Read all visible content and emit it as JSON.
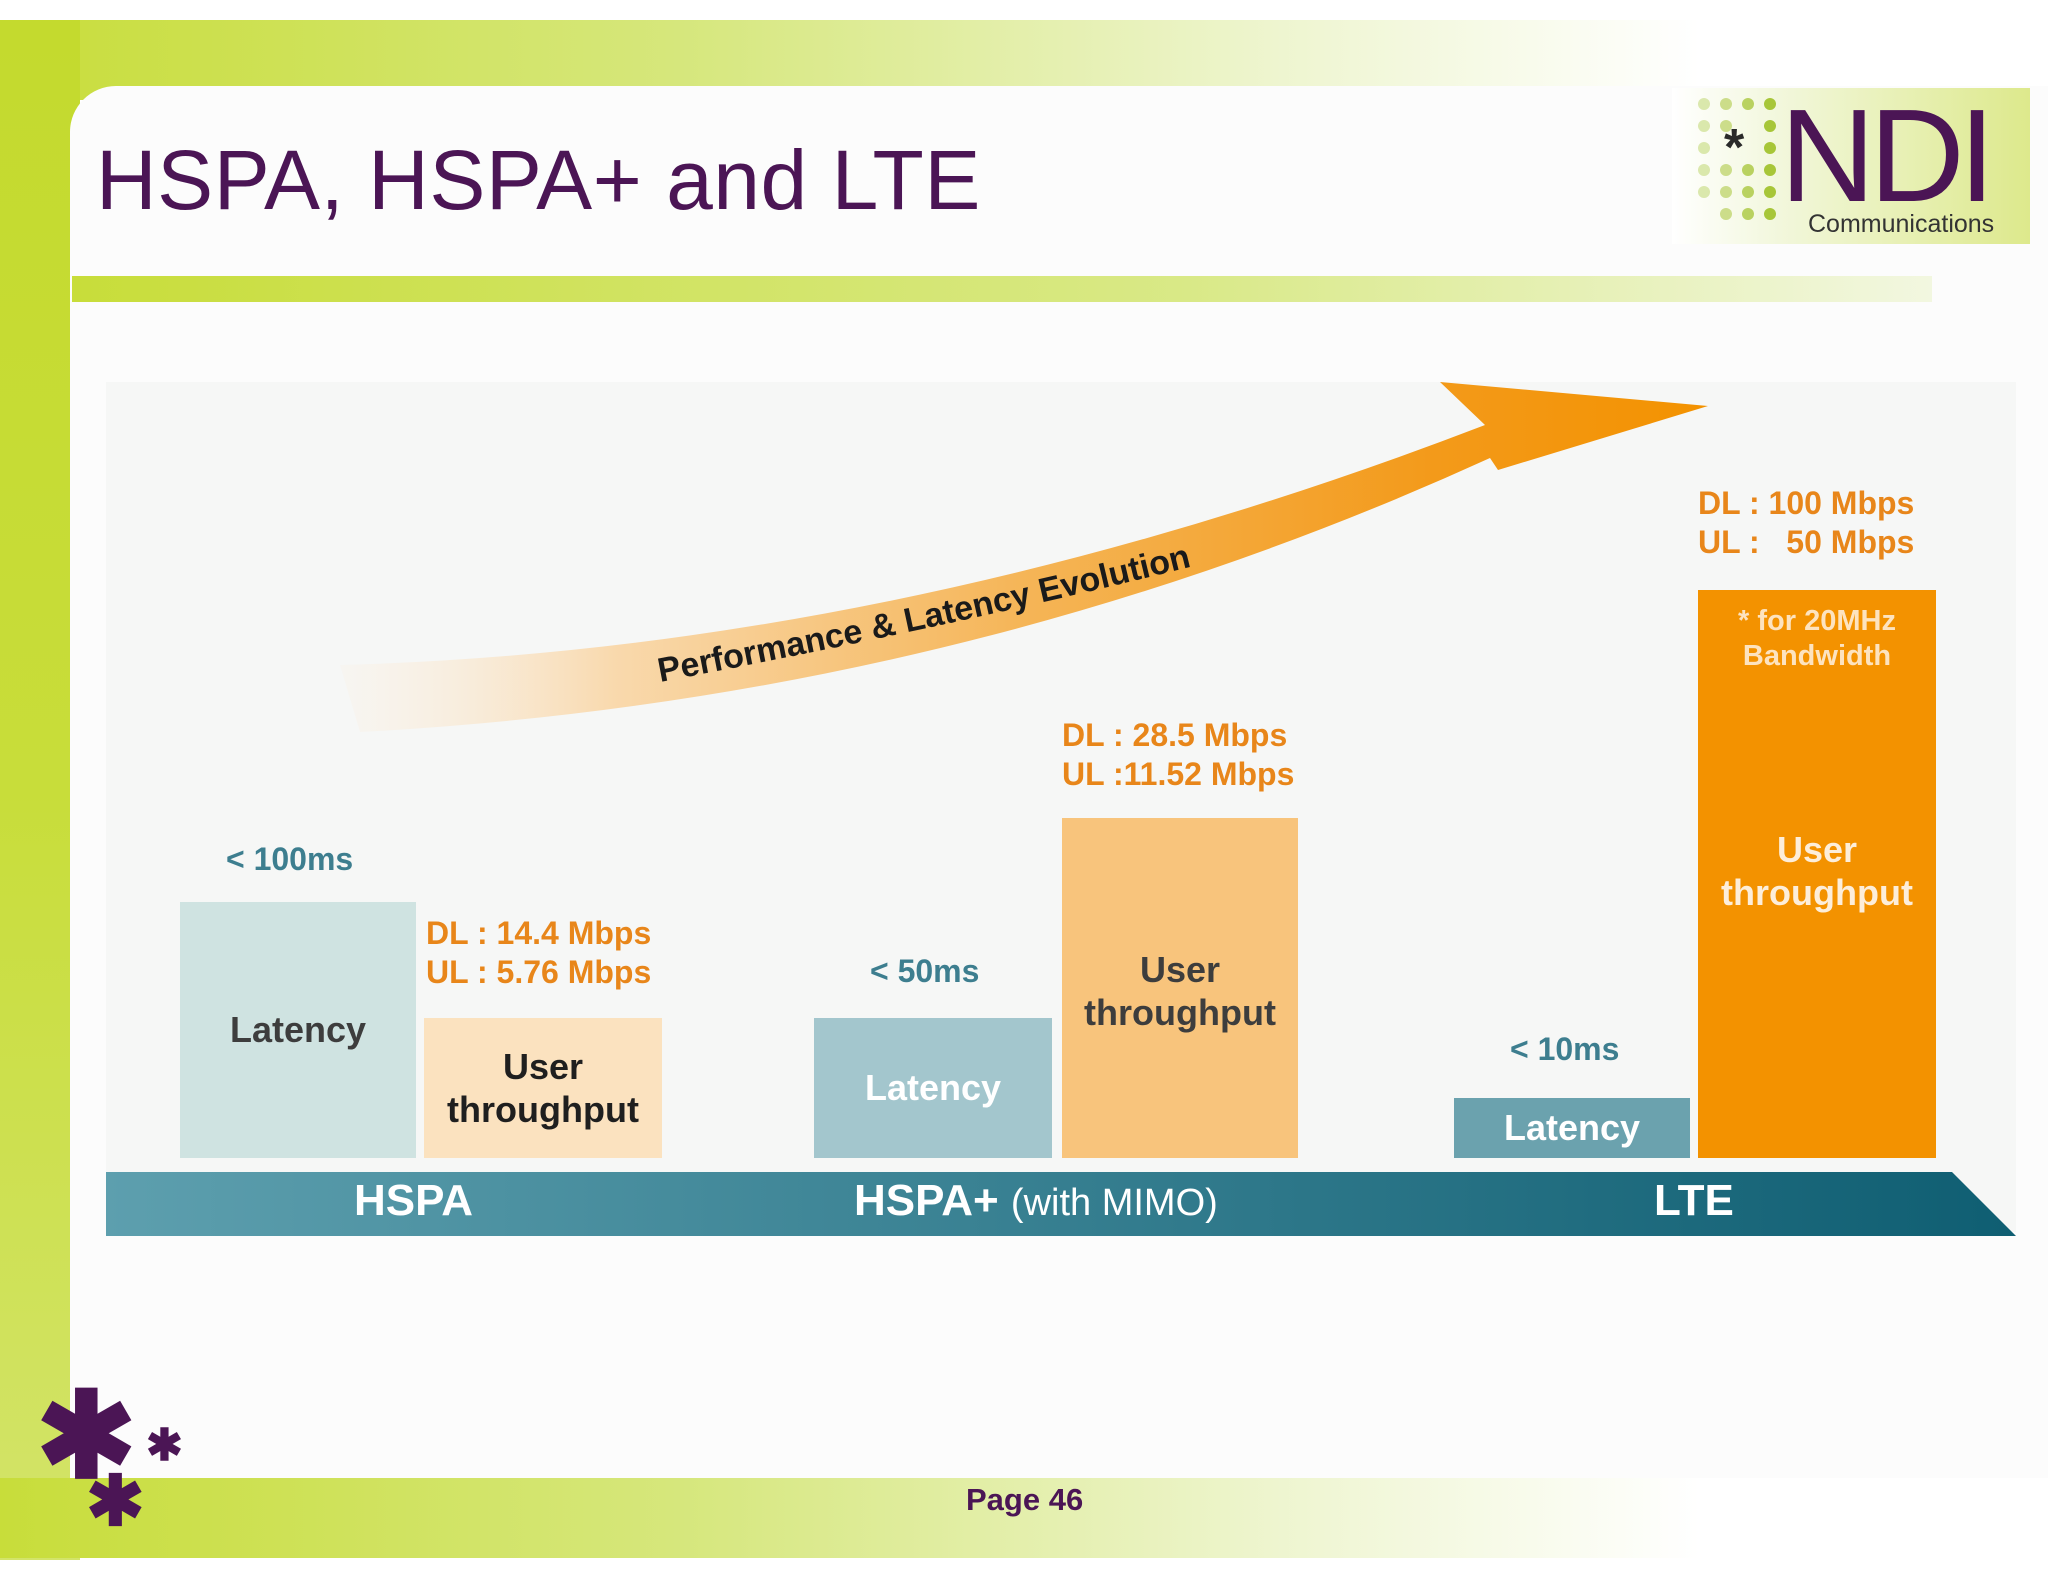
{
  "slide": {
    "title": "HSPA, HSPA+ and LTE",
    "page_label": "Page 46"
  },
  "logo": {
    "mark": "NDI",
    "asterisk": "*",
    "subtitle": "Communications"
  },
  "colors": {
    "title": "#4b1555",
    "accent_green": "#c8dd3a",
    "teal": "#3d7e8f",
    "orange": "#f39200"
  },
  "arrow": {
    "label": "Performance & Latency Evolution"
  },
  "technologies": [
    {
      "name": "HSPA",
      "latency_label": "< 100ms",
      "latency_box": "Latency",
      "throughput_label": [
        "DL : 14.4 Mbps",
        "UL : 5.76 Mbps"
      ],
      "throughput_box": [
        "User",
        "throughput"
      ]
    },
    {
      "name": "HSPA+",
      "name_suffix": "(with MIMO)",
      "latency_label": "< 50ms",
      "latency_box": "Latency",
      "throughput_label": [
        "DL : 28.5 Mbps",
        "UL :11.52 Mbps"
      ],
      "throughput_box": [
        "User",
        "throughput"
      ]
    },
    {
      "name": "LTE",
      "latency_label": "< 10ms",
      "latency_box": "Latency",
      "throughput_label": [
        "DL : 100 Mbps",
        "UL :   50 Mbps"
      ],
      "throughput_note": [
        "* for 20MHz",
        "Bandwidth"
      ],
      "throughput_box": [
        "User",
        "throughput"
      ]
    }
  ]
}
